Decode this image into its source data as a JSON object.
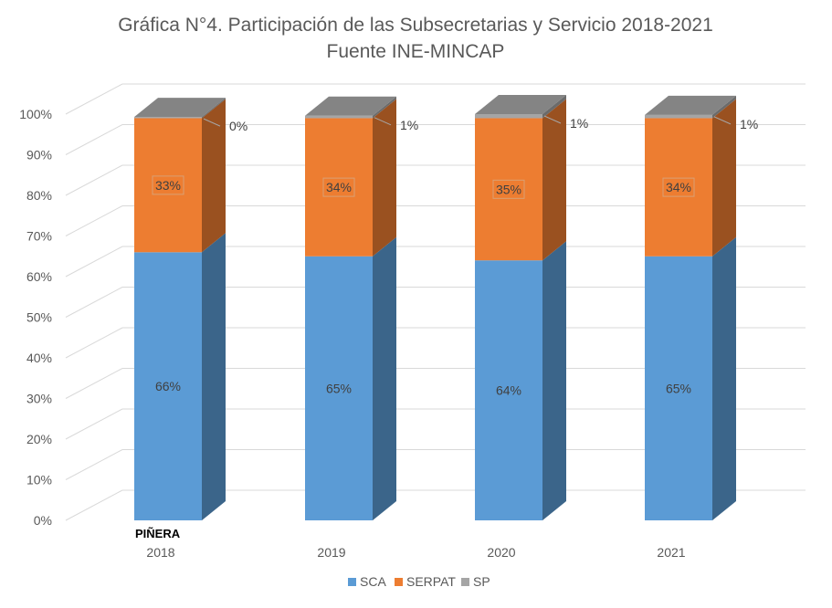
{
  "chart_data": {
    "type": "bar",
    "stacked": true,
    "style": "3d-stacked-100-percent",
    "title_line1": "Gráfica N°4. Participación de las Subsecretarias y Servicio 2018-2021",
    "title_line2": "Fuente INE-MINCAP",
    "categories": [
      "2018",
      "2019",
      "2020",
      "2021"
    ],
    "category_annotation": "PIÑERA",
    "series": [
      {
        "name": "SCA",
        "color": "#5B9BD5",
        "values": [
          66,
          65,
          64,
          65
        ],
        "labels": [
          "66%",
          "65%",
          "64%",
          "65%"
        ]
      },
      {
        "name": "SERPAT",
        "color": "#ED7D31",
        "values": [
          33,
          34,
          35,
          34
        ],
        "labels": [
          "33%",
          "34%",
          "35%",
          "34%"
        ]
      },
      {
        "name": "SP",
        "color": "#A5A5A5",
        "values": [
          0.3,
          0.6,
          1,
          0.8
        ],
        "labels": [
          "0%",
          "1%",
          "1%",
          "1%"
        ]
      }
    ],
    "y_ticks": [
      "0%",
      "10%",
      "20%",
      "30%",
      "40%",
      "50%",
      "60%",
      "70%",
      "80%",
      "90%",
      "100%"
    ],
    "ylim": [
      0,
      100
    ],
    "grid": true,
    "legend_position": "bottom"
  }
}
